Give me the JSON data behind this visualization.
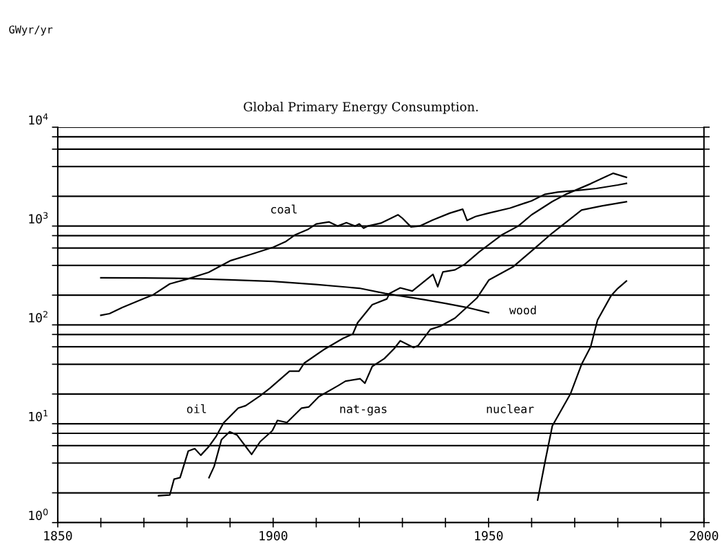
{
  "chart_data": {
    "type": "line",
    "title": "Global Primary Energy Consumption.",
    "annotations": [
      "GWyr/yr"
    ],
    "log": "y",
    "grid": "y",
    "legend": false,
    "marker": "none",
    "line_style": "solid",
    "xlim": [
      1850,
      2000
    ],
    "xticks": [
      1850,
      {
        "value": 1860,
        "label": null
      },
      {
        "value": 1870,
        "label": null
      },
      {
        "value": 1880,
        "label": null
      },
      {
        "value": 1890,
        "label": null
      },
      1900,
      {
        "value": 1910,
        "label": null
      },
      {
        "value": 1920,
        "label": null
      },
      {
        "value": 1930,
        "label": null
      },
      {
        "value": 1940,
        "label": null
      },
      1950,
      {
        "value": 1960,
        "label": null
      },
      {
        "value": 1970,
        "label": null
      },
      {
        "value": 1980,
        "label": null
      },
      {
        "value": 1990,
        "label": null
      },
      2000
    ],
    "ylim": [
      1,
      10000
    ],
    "yticks": [
      {
        "value": 1,
        "label": "10$^{0}$"
      },
      {
        "value": 2,
        "label": null
      },
      {
        "value": 4,
        "label": null
      },
      {
        "value": 6,
        "label": null
      },
      {
        "value": 8,
        "label": null
      },
      {
        "value": 10,
        "label": "10$^{1}$"
      },
      {
        "value": 20,
        "label": null
      },
      {
        "value": 40,
        "label": null
      },
      {
        "value": 60,
        "label": null
      },
      {
        "value": 80,
        "label": null
      },
      {
        "value": 100,
        "label": "10$^{2}$"
      },
      {
        "value": 200,
        "label": null
      },
      {
        "value": 400,
        "label": null
      },
      {
        "value": 600,
        "label": null
      },
      {
        "value": 800,
        "label": null
      },
      {
        "value": 1000,
        "label": "10$^{3}$"
      },
      {
        "value": 2000,
        "label": null
      },
      {
        "value": 4000,
        "label": null
      },
      {
        "value": 6000,
        "label": null
      },
      {
        "value": 8000,
        "label": null
      },
      {
        "value": 10000,
        "label": "10$^{4}$"
      }
    ],
    "series": [
      {
        "name": "coal",
        "color": "#000000",
        "x": [
          1860,
          1862,
          1865,
          1870,
          1872,
          1876,
          1880,
          1885,
          1890,
          1895,
          1900,
          1903,
          1905,
          1908,
          1910,
          1913,
          1915,
          1917,
          1919,
          1920,
          1921,
          1922,
          1925,
          1929,
          1930,
          1932,
          1934,
          1937,
          1941,
          1944,
          1945,
          1947,
          1950,
          1955,
          1960,
          1963,
          1966,
          1968,
          1971,
          1975,
          1980,
          1982
        ],
        "values": [
          125,
          130,
          150,
          185,
          200,
          260,
          290,
          340,
          445,
          520,
          610,
          700,
          810,
          920,
          1050,
          1100,
          1000,
          1080,
          1000,
          1050,
          950,
          1000,
          1070,
          1300,
          1200,
          980,
          1000,
          1150,
          1350,
          1480,
          1140,
          1250,
          1350,
          1520,
          1800,
          2090,
          2200,
          2250,
          2300,
          2400,
          2600,
          2700
        ]
      },
      {
        "name": "wood",
        "color": "#000000",
        "x": [
          1860,
          1870,
          1880,
          1890,
          1900,
          1910,
          1920,
          1926,
          1935,
          1940,
          1945,
          1950
        ],
        "values": [
          300,
          298,
          295,
          285,
          275,
          256,
          235,
          208,
          180,
          165,
          150,
          133
        ]
      },
      {
        "name": "oil",
        "color": "#000000",
        "x": [
          1873.4,
          1876,
          1877,
          1878.4,
          1880.3,
          1881.8,
          1883.2,
          1885.1,
          1886.8,
          1888.5,
          1891.9,
          1893.6,
          1897,
          1899.3,
          1903.8,
          1906,
          1907.2,
          1911.7,
          1916.2,
          1918.5,
          1919.6,
          1923,
          1926.4,
          1927,
          1929.5,
          1932.3,
          1937.1,
          1938.2,
          1939.4,
          1942.2,
          1944.5,
          1947.9,
          1953,
          1956.9,
          1960,
          1964.8,
          1967.9,
          1973.7,
          1978.9,
          1982
        ],
        "values": [
          1.87,
          1.9,
          2.75,
          2.85,
          5.3,
          5.6,
          4.8,
          5.9,
          7.5,
          10.2,
          14.4,
          15.2,
          19.2,
          23,
          34,
          34,
          41,
          56,
          73,
          81,
          105,
          160,
          183,
          208,
          237,
          220,
          324,
          243,
          343,
          360,
          411,
          550,
          810,
          1000,
          1300,
          1770,
          2090,
          2680,
          3420,
          3110
        ]
      },
      {
        "name": "nat-gas",
        "color": "#000000",
        "x": [
          1885.1,
          1886.3,
          1888,
          1889.9,
          1891.6,
          1893.6,
          1895,
          1897,
          1899.8,
          1901,
          1903.2,
          1906.6,
          1908.3,
          1910.6,
          1915.1,
          1916.8,
          1920.2,
          1921.3,
          1923,
          1925.8,
          1928.1,
          1929.5,
          1932.6,
          1933.7,
          1936.5,
          1938.8,
          1942.2,
          1947.3,
          1950.1,
          1955.8,
          1960,
          1964.8,
          1971.6,
          1976.3,
          1982
        ],
        "values": [
          2.85,
          3.7,
          6.9,
          8.3,
          7.7,
          5.9,
          4.9,
          6.6,
          8.5,
          10.8,
          10.3,
          14.4,
          14.8,
          18.8,
          24.3,
          27,
          28.5,
          25.7,
          38,
          45.6,
          57.6,
          69,
          59,
          62,
          90,
          97,
          117,
          187,
          285,
          390,
          560,
          850,
          1450,
          1600,
          1760
        ]
      },
      {
        "name": "nuclear",
        "color": "#000000",
        "x": [
          1961.4,
          1963.1,
          1964.8,
          1969,
          1971.6,
          1973.7,
          1975.3,
          1978.4,
          1980,
          1982
        ],
        "values": [
          1.69,
          4.1,
          9.5,
          20,
          40,
          60,
          112,
          196,
          234,
          278
        ]
      }
    ]
  }
}
